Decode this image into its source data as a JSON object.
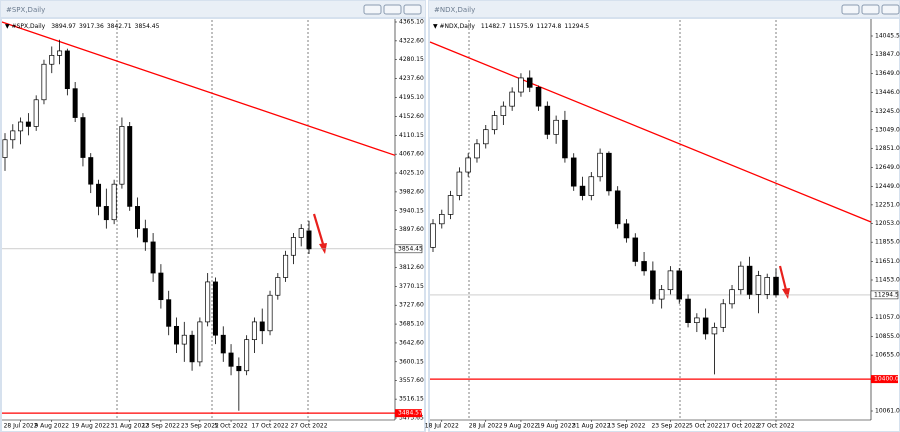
{
  "chart_data": [
    {
      "type": "candlestick",
      "title": "#SPX,Daily",
      "categories": [
        null,
        null,
        "28 Jul 2022",
        null,
        null,
        null,
        "9 Aug 2022",
        null,
        null,
        null,
        null,
        "19 Aug 2022",
        null,
        null,
        null,
        null,
        "31 Aug 2022",
        null,
        null,
        null,
        "13 Sep 2022",
        null,
        null,
        null,
        null,
        "23 Sep 2022",
        null,
        null,
        null,
        "5 Oct 2022",
        null,
        null,
        null,
        null,
        "17 Oct 2022",
        null,
        null,
        null,
        null,
        "27 Oct 2022"
      ],
      "open": [
        4060,
        4100,
        4120,
        4140,
        4130,
        4190,
        4270,
        4290,
        4300,
        4215,
        4150,
        4060,
        4000,
        3950,
        3920,
        4000,
        4130,
        3950,
        3900,
        3870,
        3800,
        3740,
        3680,
        3640,
        3660,
        3600,
        3690,
        3780,
        3660,
        3620,
        3590,
        3580,
        3650,
        3690,
        3670,
        3750,
        3790,
        3840,
        3880,
        3894.97
      ],
      "high": [
        4115,
        4135,
        4150,
        4160,
        4200,
        4280,
        4310,
        4325,
        4305,
        4230,
        4160,
        4070,
        4010,
        3990,
        4010,
        4150,
        4140,
        3970,
        3920,
        3890,
        3820,
        3760,
        3700,
        3690,
        3670,
        3700,
        3800,
        3790,
        3680,
        3640,
        3610,
        3660,
        3700,
        3720,
        3760,
        3800,
        3850,
        3890,
        3910,
        3917.36
      ],
      "low": [
        4030,
        4080,
        4090,
        4110,
        4120,
        4180,
        4250,
        4270,
        4200,
        4140,
        4040,
        3980,
        3930,
        3900,
        3910,
        3990,
        3940,
        3880,
        3850,
        3780,
        3720,
        3660,
        3620,
        3600,
        3580,
        3590,
        3680,
        3640,
        3600,
        3570,
        3490,
        3570,
        3620,
        3640,
        3660,
        3740,
        3780,
        3820,
        3860,
        3842.71
      ],
      "close": [
        4100,
        4120,
        4140,
        4130,
        4190,
        4270,
        4290,
        4300,
        4215,
        4150,
        4060,
        4000,
        3950,
        3920,
        4000,
        4130,
        3950,
        3900,
        3870,
        3800,
        3740,
        3680,
        3640,
        3660,
        3600,
        3690,
        3780,
        3660,
        3620,
        3590,
        3580,
        3650,
        3690,
        3670,
        3750,
        3790,
        3840,
        3880,
        3900,
        3854.45
      ],
      "ylim": [
        3469.15,
        4369.6
      ],
      "yticks": [
        {
          "value": 4365.1,
          "label": "4365.10"
        },
        {
          "value": 4322.6,
          "label": "4322.60"
        },
        4280.15,
        {
          "value": 4237.6,
          "label": "4237.60"
        },
        {
          "value": 4195.1,
          "label": "4195.10"
        },
        {
          "value": 4152.6,
          "label": "4152.60"
        },
        4110.15,
        {
          "value": 4067.6,
          "label": "4067.60"
        },
        {
          "value": 4025.1,
          "label": "4025.10"
        },
        {
          "value": 3982.6,
          "label": "3982.60"
        },
        3940.15,
        {
          "value": 3897.6,
          "label": "3897.60"
        },
        {
          "value": 3812.6,
          "label": "3812.60"
        },
        3770.15,
        {
          "value": 3727.6,
          "label": "3727.60"
        },
        {
          "value": 3685.1,
          "label": "3685.10"
        },
        {
          "value": 3642.6,
          "label": "3642.60"
        },
        3600.15,
        {
          "value": 3557.6,
          "label": "3557.60"
        },
        3516.15,
        3473.65
      ],
      "trendline": [
        4365,
        4065
      ],
      "trendline_color": "#ff0000",
      "hline": 3484.57,
      "up_color": "#ffffff",
      "down_color": "#000000"
    },
    {
      "type": "candlestick",
      "title": "#NDX,Daily",
      "categories": [
        null,
        "18 Jul 2022",
        null,
        null,
        null,
        null,
        "28 Jul 2022",
        null,
        null,
        null,
        "9 Aug 2022",
        null,
        null,
        null,
        "19 Aug 2022",
        null,
        null,
        null,
        "31 Aug 2022",
        null,
        null,
        null,
        "13 Sep 2022",
        null,
        null,
        null,
        null,
        "23 Sep 2022",
        null,
        null,
        null,
        "5 Oct 2022",
        null,
        null,
        null,
        "17 Oct 2022",
        null,
        null,
        null,
        "27 Oct 2022"
      ],
      "open": [
        11800,
        12050,
        12150,
        12350,
        12600,
        12750,
        12900,
        13050,
        13200,
        13300,
        13450,
        13600,
        13500,
        13300,
        13000,
        13150,
        12750,
        12450,
        12350,
        12550,
        12800,
        12400,
        12050,
        11900,
        11650,
        11550,
        11250,
        11350,
        11550,
        11250,
        11000,
        11050,
        10880,
        10950,
        11200,
        11350,
        11600,
        11300,
        11300,
        11482.7
      ],
      "high": [
        12100,
        12200,
        12400,
        12650,
        12800,
        12950,
        13100,
        13250,
        13350,
        13500,
        13650,
        13680,
        13520,
        13350,
        13200,
        13250,
        12800,
        12550,
        12600,
        12850,
        12820,
        12450,
        12100,
        11950,
        11750,
        11650,
        11400,
        11600,
        11580,
        11300,
        11100,
        11150,
        11000,
        11250,
        11400,
        11650,
        11700,
        11550,
        11520,
        11575.9
      ],
      "low": [
        11750,
        12000,
        12100,
        12300,
        12550,
        12700,
        12850,
        13000,
        13100,
        13250,
        13400,
        13450,
        13250,
        12950,
        12900,
        12700,
        12400,
        12300,
        12300,
        12500,
        12350,
        12000,
        11850,
        11600,
        11500,
        11200,
        11150,
        11300,
        11200,
        10950,
        10900,
        10820,
        10450,
        10900,
        11150,
        11300,
        11250,
        11100,
        11250,
        11274.8
      ],
      "close": [
        12050,
        12150,
        12350,
        12600,
        12750,
        12900,
        13050,
        13200,
        13300,
        13450,
        13600,
        13500,
        13300,
        13000,
        13150,
        12750,
        12450,
        12350,
        12550,
        12800,
        12400,
        12050,
        11900,
        11650,
        11550,
        11250,
        11350,
        11550,
        11250,
        11000,
        11050,
        10880,
        10950,
        11200,
        11350,
        11600,
        11300,
        11500,
        11480,
        11294.5
      ],
      "ylim": [
        9965.4,
        14215.5
      ],
      "yticks": [
        14045.5,
        {
          "value": 13847,
          "label": "13847.0"
        },
        {
          "value": 13649,
          "label": "13649.0"
        },
        {
          "value": 13446,
          "label": "13446.0"
        },
        {
          "value": 13245,
          "label": "13245.0"
        },
        {
          "value": 13049,
          "label": "13049.0"
        },
        {
          "value": 12851,
          "label": "12851.0"
        },
        {
          "value": 12649,
          "label": "12649.0"
        },
        {
          "value": 12449,
          "label": "12449.0"
        },
        {
          "value": 12251,
          "label": "12251.0"
        },
        {
          "value": 12053,
          "label": "12053.0"
        },
        {
          "value": 11855,
          "label": "11855.0"
        },
        {
          "value": 11651,
          "label": "11651.0"
        },
        {
          "value": 11453,
          "label": "11453.0"
        },
        {
          "value": 11057,
          "label": "11057.0"
        },
        {
          "value": 10855,
          "label": "10855.0"
        },
        {
          "value": 10655,
          "label": "10655.0"
        },
        {
          "value": 10061,
          "label": "10061.0"
        }
      ],
      "trendline": [
        13982,
        12069
      ],
      "trendline_color": "#ff0000",
      "hline": {
        "value": 10400,
        "label": "10400.0"
      },
      "up_color": "#ffffff",
      "down_color": "#000000"
    }
  ]
}
